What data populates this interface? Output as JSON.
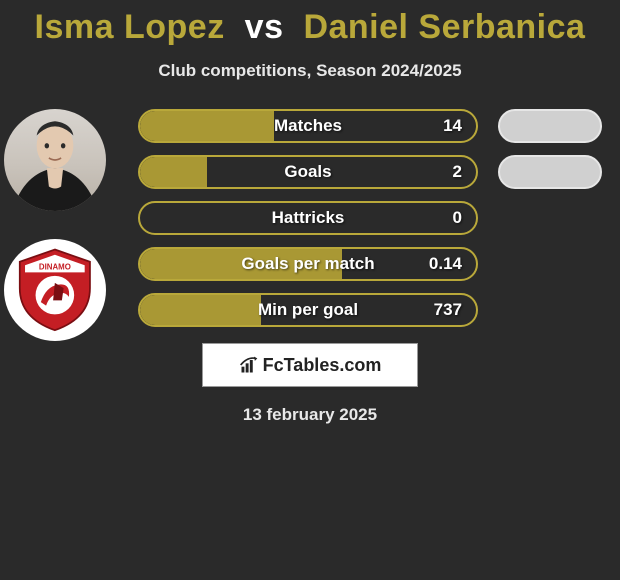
{
  "title": {
    "player1": "Isma Lopez",
    "vs": "vs",
    "player2": "Daniel Serbanica"
  },
  "subtitle": "Club competitions, Season 2024/2025",
  "date": "13 february 2025",
  "footer_logo_text": "FcTables.com",
  "colors": {
    "olive": "#a99834",
    "olive_border": "#b9a83a",
    "grey_pill": "#d0d0d0",
    "grey_pill_border": "#e6e6e6",
    "background": "#2a2a2a"
  },
  "stats": [
    {
      "label": "Matches",
      "value": "14",
      "fill_pct": 40,
      "right_pill_color": "grey"
    },
    {
      "label": "Goals",
      "value": "2",
      "fill_pct": 20,
      "right_pill_color": "grey"
    },
    {
      "label": "Hattricks",
      "value": "0",
      "fill_pct": 0,
      "right_pill_color": null
    },
    {
      "label": "Goals per match",
      "value": "0.14",
      "fill_pct": 60,
      "right_pill_color": null
    },
    {
      "label": "Min per goal",
      "value": "737",
      "fill_pct": 36,
      "right_pill_color": null
    }
  ],
  "club_logo": {
    "name": "Dinamo",
    "primary_color": "#c41e24",
    "secondary_color": "#ffffff"
  }
}
